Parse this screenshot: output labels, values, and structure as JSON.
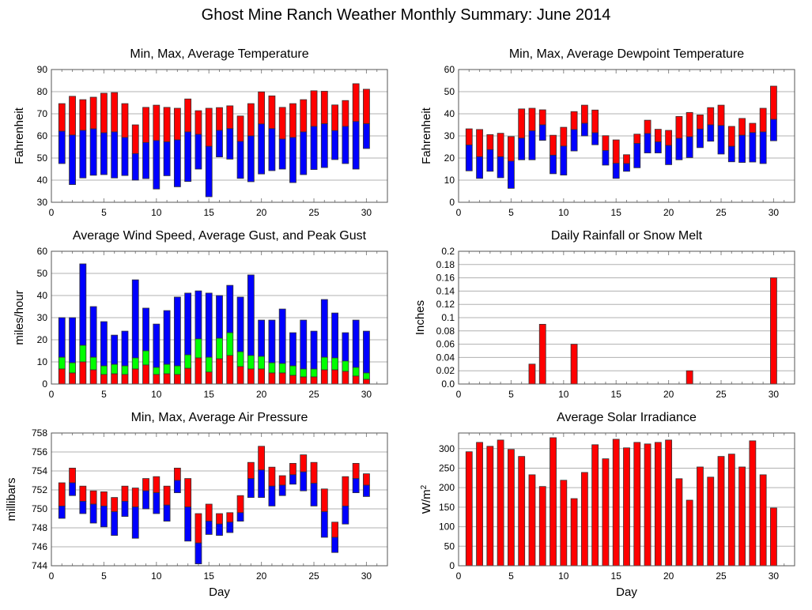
{
  "page_title": "Ghost Mine Ranch Weather Monthly Summary: June 2014",
  "colors": {
    "red": "#ff0000",
    "blue": "#0000ff",
    "green": "#00ff00",
    "grid": "#b0b0b0"
  },
  "chart_data": [
    {
      "id": "temperature",
      "type": "bar",
      "title": "Min, Max, Average Temperature",
      "xlabel": "",
      "ylabel": "Fahrenheit",
      "xlim": [
        0,
        32
      ],
      "ylim": [
        30,
        90
      ],
      "xticks": [
        0,
        5,
        10,
        15,
        20,
        25,
        30
      ],
      "yticks": [
        30,
        40,
        50,
        60,
        70,
        80,
        90
      ],
      "grid": true,
      "x": [
        1,
        2,
        3,
        4,
        5,
        6,
        7,
        8,
        9,
        10,
        11,
        12,
        13,
        14,
        15,
        16,
        17,
        18,
        19,
        20,
        21,
        22,
        23,
        24,
        25,
        26,
        27,
        28,
        29,
        30
      ],
      "series": [
        {
          "name": "Max",
          "color": "#ff0000",
          "values": [
            74.6,
            77.9,
            76.4,
            77.5,
            79.3,
            79.6,
            74.6,
            65.0,
            72.9,
            73.9,
            72.9,
            72.5,
            76.7,
            71.4,
            72.5,
            72.8,
            73.6,
            69.0,
            74.6,
            79.9,
            78.1,
            72.9,
            74.6,
            76.4,
            80.4,
            80.2,
            74.0,
            76.0,
            83.6,
            81.1
          ]
        },
        {
          "name": "Average",
          "values": [
            62.1,
            60.4,
            62.5,
            63.2,
            61.4,
            61.8,
            59.3,
            52.0,
            57.0,
            57.9,
            57.3,
            58.2,
            61.8,
            60.7,
            55.3,
            62.5,
            63.3,
            57.5,
            60.0,
            65.4,
            63.3,
            58.6,
            59.3,
            61.8,
            64.3,
            65.5,
            62.4,
            64.3,
            66.5,
            65.5
          ]
        },
        {
          "name": "Min",
          "color": "#0000ff",
          "values": [
            47.5,
            38.0,
            41.0,
            42.2,
            42.5,
            41.0,
            42.1,
            40.0,
            40.7,
            36.0,
            42.0,
            37.0,
            39.4,
            45.0,
            32.5,
            50.5,
            49.5,
            40.8,
            39.3,
            42.8,
            44.3,
            45.0,
            38.9,
            42.5,
            44.8,
            45.7,
            49.3,
            47.5,
            45.0,
            54.3
          ]
        }
      ]
    },
    {
      "id": "dewpoint",
      "type": "bar",
      "title": "Min, Max, Average Dewpoint Temperature",
      "xlabel": "",
      "ylabel": "Fahrenheit",
      "xlim": [
        0,
        32
      ],
      "ylim": [
        0,
        60
      ],
      "xticks": [
        0,
        5,
        10,
        15,
        20,
        25,
        30
      ],
      "yticks": [
        0,
        10,
        20,
        30,
        40,
        50,
        60
      ],
      "grid": true,
      "x": [
        1,
        2,
        3,
        4,
        5,
        6,
        7,
        8,
        9,
        10,
        11,
        12,
        13,
        14,
        15,
        16,
        17,
        18,
        19,
        20,
        21,
        22,
        23,
        24,
        25,
        26,
        27,
        28,
        29,
        30
      ],
      "series": [
        {
          "name": "Max",
          "color": "#ff0000",
          "values": [
            33.2,
            32.9,
            30.6,
            31.2,
            29.7,
            42.2,
            42.5,
            41.8,
            30.3,
            33.9,
            41.0,
            43.9,
            41.7,
            30.1,
            28.2,
            21.5,
            30.8,
            37.1,
            33.0,
            32.5,
            38.8,
            40.6,
            39.5,
            42.8,
            43.9,
            34.3,
            37.9,
            35.7,
            42.5,
            52.5
          ]
        },
        {
          "name": "Average",
          "values": [
            25.9,
            20.6,
            23.8,
            20.6,
            18.6,
            29.0,
            32.3,
            35.0,
            21.3,
            25.4,
            32.9,
            35.7,
            31.4,
            23.4,
            17.6,
            17.5,
            26.6,
            31.1,
            27.3,
            25.7,
            28.9,
            29.6,
            33.1,
            35.0,
            34.7,
            25.3,
            30.3,
            31.5,
            31.8,
            37.5
          ]
        },
        {
          "name": "Min",
          "color": "#0000ff",
          "values": [
            14.2,
            10.8,
            14.0,
            11.1,
            6.3,
            19.2,
            19.2,
            28.0,
            12.9,
            12.3,
            23.2,
            30.0,
            26.0,
            16.8,
            10.8,
            14.0,
            15.6,
            22.3,
            22.3,
            17.0,
            19.2,
            20.2,
            24.7,
            27.6,
            21.8,
            18.3,
            18.0,
            18.2,
            17.5,
            27.8
          ]
        }
      ]
    },
    {
      "id": "wind",
      "type": "bar",
      "title": "Average Wind Speed, Average Gust, and Peak Gust",
      "xlabel": "",
      "ylabel": "miles/hour",
      "xlim": [
        0,
        32
      ],
      "ylim": [
        0,
        60
      ],
      "xticks": [
        0,
        5,
        10,
        15,
        20,
        25,
        30
      ],
      "yticks": [
        0,
        10,
        20,
        30,
        40,
        50,
        60
      ],
      "grid": true,
      "x": [
        1,
        2,
        3,
        4,
        5,
        6,
        7,
        8,
        9,
        10,
        11,
        12,
        13,
        14,
        15,
        16,
        17,
        18,
        19,
        20,
        21,
        22,
        23,
        24,
        25,
        26,
        27,
        28,
        29,
        30
      ],
      "series": [
        {
          "name": "Peak Gust",
          "color": "#0000ff",
          "values": [
            30.0,
            30.0,
            54.3,
            35.0,
            28.2,
            22.1,
            23.9,
            47.1,
            34.3,
            27.1,
            33.2,
            39.3,
            41.1,
            42.1,
            41.1,
            40.0,
            44.6,
            39.3,
            49.3,
            28.9,
            28.9,
            33.9,
            23.2,
            28.9,
            23.9,
            38.2,
            32.1,
            23.2,
            28.9,
            23.9
          ]
        },
        {
          "name": "Average Gust",
          "color": "#00ff00",
          "values": [
            12.1,
            9.6,
            17.5,
            12.1,
            8.2,
            8.9,
            8.2,
            11.8,
            15.0,
            7.5,
            8.9,
            8.2,
            13.2,
            20.4,
            12.1,
            20.7,
            23.2,
            14.6,
            12.9,
            12.5,
            9.6,
            9.3,
            8.2,
            6.8,
            6.8,
            12.1,
            11.8,
            10.4,
            7.5,
            5.0
          ]
        },
        {
          "name": "Average Wind Speed",
          "color": "#ff0000",
          "values": [
            6.8,
            5.0,
            10.0,
            6.4,
            4.3,
            4.6,
            4.3,
            6.8,
            8.6,
            4.3,
            4.6,
            4.3,
            7.1,
            11.8,
            5.4,
            11.4,
            12.9,
            7.9,
            6.8,
            6.8,
            5.0,
            5.0,
            3.9,
            3.2,
            3.2,
            6.4,
            6.4,
            5.7,
            3.6,
            2.1
          ]
        }
      ]
    },
    {
      "id": "rain",
      "type": "bar",
      "title": "Daily Rainfall or Snow Melt",
      "xlabel": "",
      "ylabel": "Inches",
      "xlim": [
        0,
        32
      ],
      "ylim": [
        0,
        0.2
      ],
      "xticks": [
        0,
        5,
        10,
        15,
        20,
        25,
        30
      ],
      "yticks": [
        "0.0",
        "0.02",
        "0.04",
        "0.06",
        "0.08",
        "0.1",
        "0.12",
        "0.14",
        "0.16",
        "0.18",
        "0.2"
      ],
      "grid": true,
      "x": [
        1,
        2,
        3,
        4,
        5,
        6,
        7,
        8,
        9,
        10,
        11,
        12,
        13,
        14,
        15,
        16,
        17,
        18,
        19,
        20,
        21,
        22,
        23,
        24,
        25,
        26,
        27,
        28,
        29,
        30
      ],
      "series": [
        {
          "name": "Rainfall",
          "color": "#ff0000",
          "values": [
            0,
            0,
            0,
            0,
            0,
            0,
            0.03,
            0.09,
            0,
            0,
            0.06,
            0,
            0,
            0,
            0,
            0,
            0,
            0,
            0,
            0,
            0,
            0.02,
            0,
            0,
            0,
            0,
            0,
            0,
            0,
            0.16
          ]
        }
      ]
    },
    {
      "id": "pressure",
      "type": "bar",
      "title": "Min, Max, Average Air Pressure",
      "xlabel": "Day",
      "ylabel": "millibars",
      "xlim": [
        0,
        32
      ],
      "ylim": [
        744,
        758
      ],
      "xticks": [
        0,
        5,
        10,
        15,
        20,
        25,
        30
      ],
      "yticks": [
        744,
        746,
        748,
        750,
        752,
        754,
        756,
        758
      ],
      "grid": true,
      "x": [
        1,
        2,
        3,
        4,
        5,
        6,
        7,
        8,
        9,
        10,
        11,
        12,
        13,
        14,
        15,
        16,
        17,
        18,
        19,
        20,
        21,
        22,
        23,
        24,
        25,
        26,
        27,
        28,
        29,
        30
      ],
      "series": [
        {
          "name": "Max",
          "color": "#ff0000",
          "values": [
            752.75,
            754.3,
            752.4,
            751.9,
            751.8,
            751.2,
            752.4,
            752.2,
            753.2,
            753.4,
            752.4,
            754.3,
            753.2,
            749.5,
            750.5,
            749.5,
            749.6,
            751.4,
            754.9,
            756.6,
            754.4,
            753.5,
            754.8,
            755.7,
            754.9,
            752.1,
            748.6,
            753.4,
            754.8,
            753.7
          ]
        },
        {
          "name": "Average",
          "values": [
            750.3,
            752.75,
            750.8,
            750.5,
            750.3,
            749.7,
            750.8,
            750.2,
            751.9,
            751.7,
            750.4,
            753.0,
            750.2,
            746.4,
            748.7,
            748.4,
            748.6,
            749.6,
            753.2,
            754.1,
            752.4,
            752.5,
            753.6,
            753.9,
            752.7,
            749.7,
            747.0,
            750.3,
            753.2,
            752.5
          ]
        },
        {
          "name": "Min",
          "color": "#0000ff",
          "values": [
            749.0,
            751.4,
            749.5,
            748.5,
            748.1,
            747.2,
            749.2,
            746.9,
            750.0,
            749.5,
            748.7,
            751.7,
            746.6,
            744.2,
            747.3,
            747.2,
            747.5,
            748.7,
            751.2,
            751.2,
            750.3,
            751.4,
            752.6,
            751.9,
            750.3,
            747.0,
            745.4,
            748.4,
            751.7,
            751.3
          ]
        }
      ]
    },
    {
      "id": "solar",
      "type": "bar",
      "title": "Average Solar Irradiance",
      "xlabel": "Day",
      "ylabel": "W/m2",
      "xlim": [
        0,
        32
      ],
      "ylim": [
        0,
        340
      ],
      "xticks": [
        0,
        5,
        10,
        15,
        20,
        25,
        30
      ],
      "yticks": [
        0,
        50,
        100,
        150,
        200,
        250,
        300
      ],
      "grid": true,
      "x": [
        1,
        2,
        3,
        4,
        5,
        6,
        7,
        8,
        9,
        10,
        11,
        12,
        13,
        14,
        15,
        16,
        17,
        18,
        19,
        20,
        21,
        22,
        23,
        24,
        25,
        26,
        27,
        28,
        29,
        30
      ],
      "series": [
        {
          "name": "Solar Irradiance",
          "color": "#ff0000",
          "values": [
            292,
            316,
            306,
            322,
            298,
            280,
            233,
            203,
            328,
            219,
            172,
            239,
            310,
            274,
            324,
            302,
            316,
            312,
            316,
            322,
            223,
            168,
            253,
            227,
            280,
            286,
            253,
            320,
            233,
            148
          ]
        }
      ]
    }
  ]
}
